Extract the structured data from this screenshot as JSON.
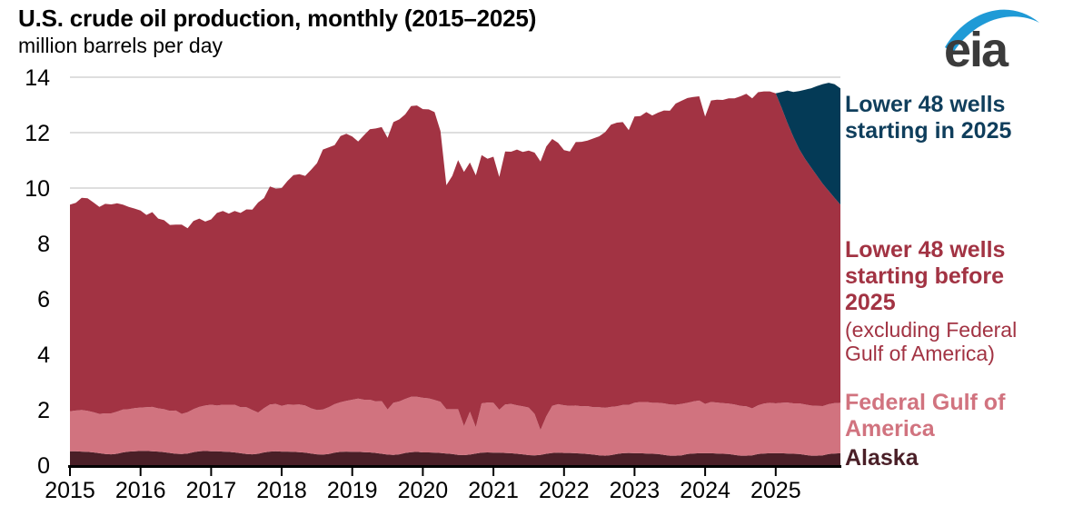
{
  "header": {
    "title": "U.S. crude oil production, monthly (2015–2025)",
    "units": "million barrels per day"
  },
  "logo": {
    "text": "eia",
    "swoosh_color": "#1f9ad6",
    "text_color": "#3b3b3b"
  },
  "legend": {
    "lower48_new": {
      "label": "Lower 48 wells starting in 2025",
      "color": "#0f3e5c"
    },
    "lower48_before": {
      "label": "Lower 48 wells starting before 2025",
      "note": "(excluding Federal Gulf of America)",
      "color": "#a23343"
    },
    "gom": {
      "label": "Federal Gulf of America",
      "color": "#d1737f"
    },
    "alaska": {
      "label": "Alaska",
      "color": "#4a1f27"
    }
  },
  "chart_data": {
    "type": "area",
    "stacked": true,
    "title": "U.S. crude oil production, monthly (2015–2025)",
    "ylabel": "million barrels per day",
    "x_interval": "monthly",
    "x_start": "2015-01",
    "x_end": "2025-12",
    "x_tick_labels": [
      "2015",
      "2016",
      "2017",
      "2018",
      "2019",
      "2020",
      "2021",
      "2022",
      "2023",
      "2024",
      "2025"
    ],
    "y_ticks": [
      0,
      2,
      4,
      6,
      8,
      10,
      12,
      14
    ],
    "ylim": [
      0,
      14
    ],
    "grid": "horizontal",
    "grid_color": "#d9d9d9",
    "axis_color": "#000000",
    "legend_position": "right",
    "series": [
      {
        "key": "alaska",
        "name": "Alaska",
        "color": "#4a1f27",
        "values": [
          0.5,
          0.5,
          0.49,
          0.48,
          0.46,
          0.43,
          0.4,
          0.39,
          0.41,
          0.46,
          0.49,
          0.5,
          0.51,
          0.51,
          0.5,
          0.49,
          0.47,
          0.44,
          0.41,
          0.4,
          0.42,
          0.47,
          0.5,
          0.51,
          0.5,
          0.5,
          0.49,
          0.48,
          0.46,
          0.43,
          0.4,
          0.39,
          0.41,
          0.46,
          0.49,
          0.5,
          0.49,
          0.49,
          0.48,
          0.47,
          0.45,
          0.42,
          0.39,
          0.38,
          0.4,
          0.45,
          0.48,
          0.49,
          0.48,
          0.48,
          0.47,
          0.46,
          0.44,
          0.41,
          0.38,
          0.37,
          0.39,
          0.44,
          0.47,
          0.48,
          0.46,
          0.46,
          0.45,
          0.44,
          0.42,
          0.4,
          0.37,
          0.36,
          0.38,
          0.42,
          0.45,
          0.46,
          0.45,
          0.45,
          0.44,
          0.43,
          0.41,
          0.39,
          0.36,
          0.35,
          0.37,
          0.41,
          0.44,
          0.45,
          0.44,
          0.44,
          0.43,
          0.42,
          0.4,
          0.38,
          0.35,
          0.34,
          0.36,
          0.4,
          0.43,
          0.44,
          0.43,
          0.43,
          0.42,
          0.41,
          0.4,
          0.37,
          0.34,
          0.34,
          0.35,
          0.4,
          0.42,
          0.43,
          0.43,
          0.43,
          0.42,
          0.41,
          0.4,
          0.37,
          0.34,
          0.34,
          0.35,
          0.4,
          0.42,
          0.43,
          0.43,
          0.43,
          0.42,
          0.41,
          0.4,
          0.37,
          0.34,
          0.34,
          0.35,
          0.4,
          0.42,
          0.43
        ]
      },
      {
        "key": "gom",
        "name": "Federal Gulf of America",
        "color": "#d1737f",
        "values": [
          1.44,
          1.47,
          1.5,
          1.48,
          1.45,
          1.42,
          1.47,
          1.48,
          1.52,
          1.55,
          1.53,
          1.56,
          1.57,
          1.58,
          1.6,
          1.56,
          1.55,
          1.52,
          1.56,
          1.45,
          1.49,
          1.55,
          1.6,
          1.64,
          1.68,
          1.65,
          1.69,
          1.7,
          1.72,
          1.66,
          1.69,
          1.6,
          1.49,
          1.6,
          1.7,
          1.71,
          1.65,
          1.7,
          1.7,
          1.72,
          1.7,
          1.63,
          1.6,
          1.63,
          1.69,
          1.75,
          1.79,
          1.83,
          1.88,
          1.92,
          1.89,
          1.9,
          1.86,
          1.9,
          1.63,
          1.88,
          1.91,
          1.95,
          2.0,
          1.99,
          1.97,
          1.95,
          1.9,
          1.85,
          1.6,
          1.62,
          1.65,
          1.05,
          1.55,
          0.95,
          1.78,
          1.8,
          1.8,
          1.55,
          1.75,
          1.78,
          1.75,
          1.73,
          1.72,
          1.5,
          0.9,
          1.35,
          1.7,
          1.75,
          1.72,
          1.7,
          1.72,
          1.7,
          1.73,
          1.71,
          1.74,
          1.73,
          1.74,
          1.72,
          1.74,
          1.73,
          1.82,
          1.85,
          1.86,
          1.84,
          1.85,
          1.86,
          1.85,
          1.84,
          1.86,
          1.85,
          1.88,
          1.9,
          1.78,
          1.85,
          1.84,
          1.83,
          1.82,
          1.82,
          1.8,
          1.78,
          1.7,
          1.76,
          1.8,
          1.82,
          1.8,
          1.82,
          1.84,
          1.82,
          1.83,
          1.82,
          1.81,
          1.8,
          1.78,
          1.8,
          1.82,
          1.82
        ]
      },
      {
        "key": "lower48_before",
        "name": "Lower 48 wells starting before 2025 (excluding Federal Gulf of America)",
        "color": "#a23343",
        "values": [
          7.46,
          7.5,
          7.66,
          7.67,
          7.57,
          7.47,
          7.56,
          7.54,
          7.52,
          7.39,
          7.3,
          7.2,
          7.11,
          6.94,
          7.03,
          6.85,
          6.82,
          6.71,
          6.71,
          6.83,
          6.64,
          6.79,
          6.8,
          6.64,
          6.69,
          6.95,
          6.99,
          6.9,
          6.99,
          7.01,
          7.14,
          7.23,
          7.58,
          7.58,
          7.87,
          7.77,
          7.86,
          8.07,
          8.29,
          8.31,
          8.29,
          8.61,
          8.91,
          9.38,
          9.38,
          9.35,
          9.61,
          9.64,
          9.5,
          9.28,
          9.55,
          9.76,
          9.85,
          9.89,
          9.8,
          10.13,
          10.18,
          10.27,
          10.49,
          10.51,
          10.42,
          10.43,
          10.39,
          9.77,
          8.08,
          8.42,
          8.99,
          9.17,
          8.99,
          9.09,
          8.96,
          8.8,
          8.88,
          8.4,
          9.13,
          9.1,
          9.23,
          9.18,
          9.27,
          9.43,
          9.69,
          9.74,
          9.63,
          9.43,
          9.21,
          9.18,
          9.51,
          9.55,
          9.58,
          9.7,
          9.78,
          9.95,
          10.19,
          10.24,
          10.21,
          9.92,
          10.33,
          10.32,
          10.46,
          10.37,
          10.47,
          10.57,
          10.6,
          10.87,
          10.94,
          11.0,
          10.99,
          10.98,
          10.37,
          10.88,
          10.93,
          10.94,
          11.02,
          11.05,
          11.17,
          11.28,
          11.19,
          11.3,
          11.27,
          11.24,
          11.19,
          10.65,
          10.09,
          9.62,
          9.17,
          8.86,
          8.6,
          8.31,
          8.02,
          7.7,
          7.41,
          7.15
        ]
      },
      {
        "key": "lower48_new",
        "name": "Lower 48 wells starting in 2025",
        "color": "#043a56",
        "values": [
          0,
          0,
          0,
          0,
          0,
          0,
          0,
          0,
          0,
          0,
          0,
          0,
          0,
          0,
          0,
          0,
          0,
          0,
          0,
          0,
          0,
          0,
          0,
          0,
          0,
          0,
          0,
          0,
          0,
          0,
          0,
          0,
          0,
          0,
          0,
          0,
          0,
          0,
          0,
          0,
          0,
          0,
          0,
          0,
          0,
          0,
          0,
          0,
          0,
          0,
          0,
          0,
          0,
          0,
          0,
          0,
          0,
          0,
          0,
          0,
          0,
          0,
          0,
          0,
          0,
          0,
          0,
          0,
          0,
          0,
          0,
          0,
          0,
          0,
          0,
          0,
          0,
          0,
          0,
          0,
          0,
          0,
          0,
          0,
          0,
          0,
          0,
          0,
          0,
          0,
          0,
          0,
          0,
          0,
          0,
          0,
          0,
          0,
          0,
          0,
          0,
          0,
          0,
          0,
          0,
          0,
          0,
          0,
          0,
          0,
          0,
          0,
          0,
          0,
          0,
          0,
          0,
          0,
          0,
          0,
          0.0,
          0.57,
          1.17,
          1.62,
          2.1,
          2.5,
          2.85,
          3.23,
          3.6,
          3.9,
          4.1,
          4.2
        ]
      }
    ]
  }
}
